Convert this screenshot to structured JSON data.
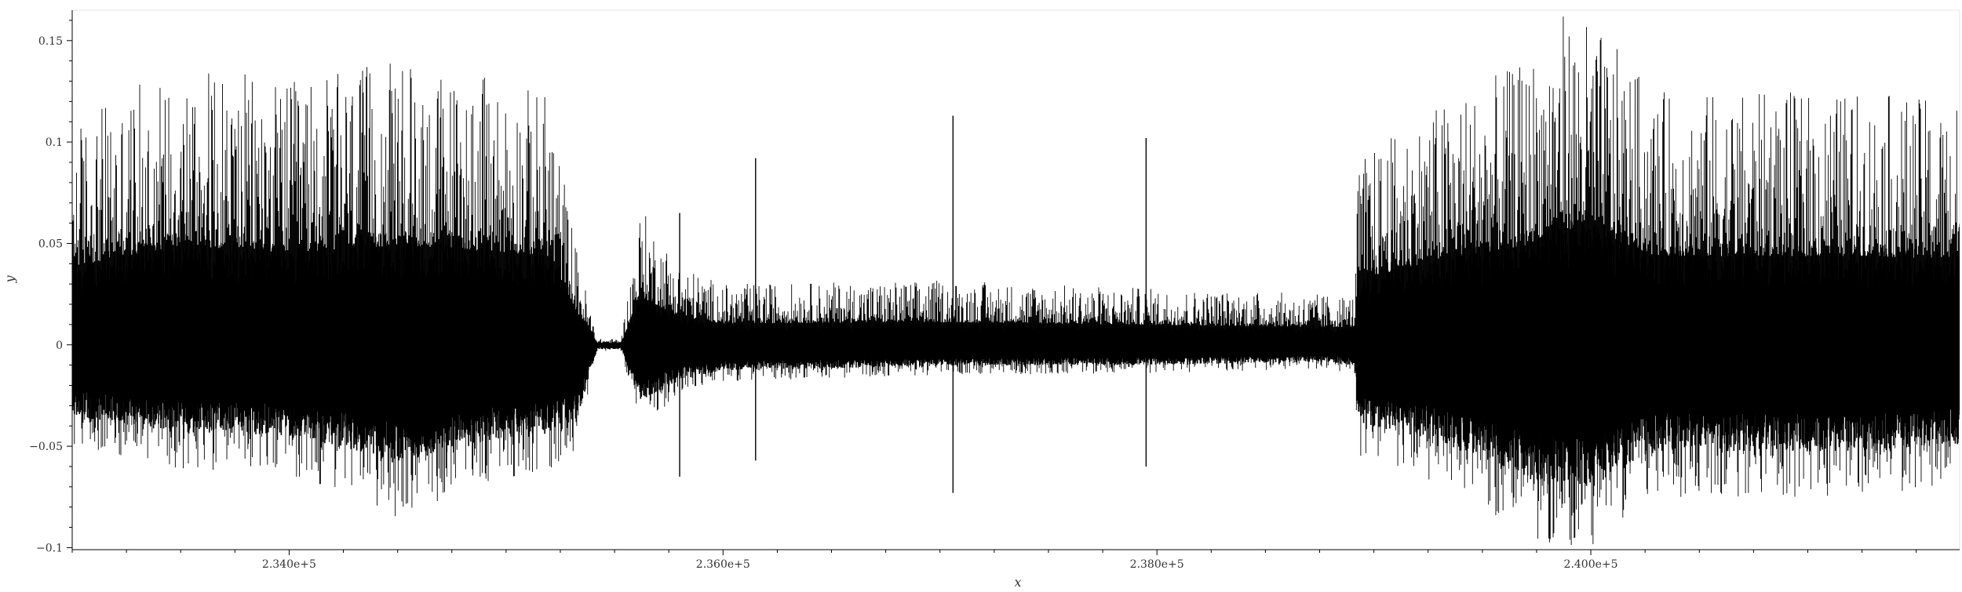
{
  "chart_data": {
    "type": "line",
    "title": "",
    "xlabel": "x",
    "ylabel": "y",
    "xlim": [
      233000,
      241700
    ],
    "ylim": [
      -0.101,
      0.165
    ],
    "x_ticks": [
      {
        "value": 234000,
        "label": "2.340e+5"
      },
      {
        "value": 236000,
        "label": "2.360e+5"
      },
      {
        "value": 238000,
        "label": "2.380e+5"
      },
      {
        "value": 240000,
        "label": "2.400e+5"
      }
    ],
    "y_ticks": [
      {
        "value": 0.15,
        "label": "0.15"
      },
      {
        "value": 0.1,
        "label": "0.1"
      },
      {
        "value": 0.05,
        "label": "0.05"
      },
      {
        "value": 0,
        "label": "0"
      },
      {
        "value": -0.05,
        "label": "−0.05"
      },
      {
        "value": -0.1,
        "label": "−0.1"
      }
    ],
    "grid": false,
    "legend": "none",
    "line_color": "#000000",
    "series": [
      {
        "envelope": [
          {
            "x": 233000,
            "lo": -0.05,
            "hi": 0.11
          },
          {
            "x": 233500,
            "lo": -0.062,
            "hi": 0.14
          },
          {
            "x": 234000,
            "lo": -0.064,
            "hi": 0.13
          },
          {
            "x": 234500,
            "lo": -0.085,
            "hi": 0.14
          },
          {
            "x": 235000,
            "lo": -0.065,
            "hi": 0.13
          },
          {
            "x": 235200,
            "lo": -0.065,
            "hi": 0.125
          },
          {
            "x": 235330,
            "lo": -0.05,
            "hi": 0.045
          },
          {
            "x": 235420,
            "lo": -0.003,
            "hi": 0.003
          },
          {
            "x": 235530,
            "lo": -0.003,
            "hi": 0.003
          },
          {
            "x": 235620,
            "lo": -0.04,
            "hi": 0.068
          },
          {
            "x": 235800,
            "lo": -0.025,
            "hi": 0.04
          },
          {
            "x": 236000,
            "lo": -0.018,
            "hi": 0.03
          },
          {
            "x": 237000,
            "lo": -0.015,
            "hi": 0.032
          },
          {
            "x": 238000,
            "lo": -0.014,
            "hi": 0.028
          },
          {
            "x": 238800,
            "lo": -0.012,
            "hi": 0.025
          },
          {
            "x": 238910,
            "lo": -0.015,
            "hi": 0.025
          },
          {
            "x": 238930,
            "lo": -0.055,
            "hi": 0.092
          },
          {
            "x": 239300,
            "lo": -0.068,
            "hi": 0.12
          },
          {
            "x": 239700,
            "lo": -0.095,
            "hi": 0.14
          },
          {
            "x": 239850,
            "lo": -0.101,
            "hi": 0.165
          },
          {
            "x": 240000,
            "lo": -0.1,
            "hi": 0.16
          },
          {
            "x": 240300,
            "lo": -0.075,
            "hi": 0.125
          },
          {
            "x": 240800,
            "lo": -0.075,
            "hi": 0.125
          },
          {
            "x": 241300,
            "lo": -0.075,
            "hi": 0.125
          },
          {
            "x": 241700,
            "lo": -0.07,
            "hi": 0.12
          }
        ],
        "spikes": [
          {
            "x": 235800,
            "lo": -0.065,
            "hi": 0.065
          },
          {
            "x": 236150,
            "lo": -0.057,
            "hi": 0.092
          },
          {
            "x": 237060,
            "lo": -0.073,
            "hi": 0.113
          },
          {
            "x": 237950,
            "lo": -0.06,
            "hi": 0.102
          }
        ]
      }
    ]
  }
}
